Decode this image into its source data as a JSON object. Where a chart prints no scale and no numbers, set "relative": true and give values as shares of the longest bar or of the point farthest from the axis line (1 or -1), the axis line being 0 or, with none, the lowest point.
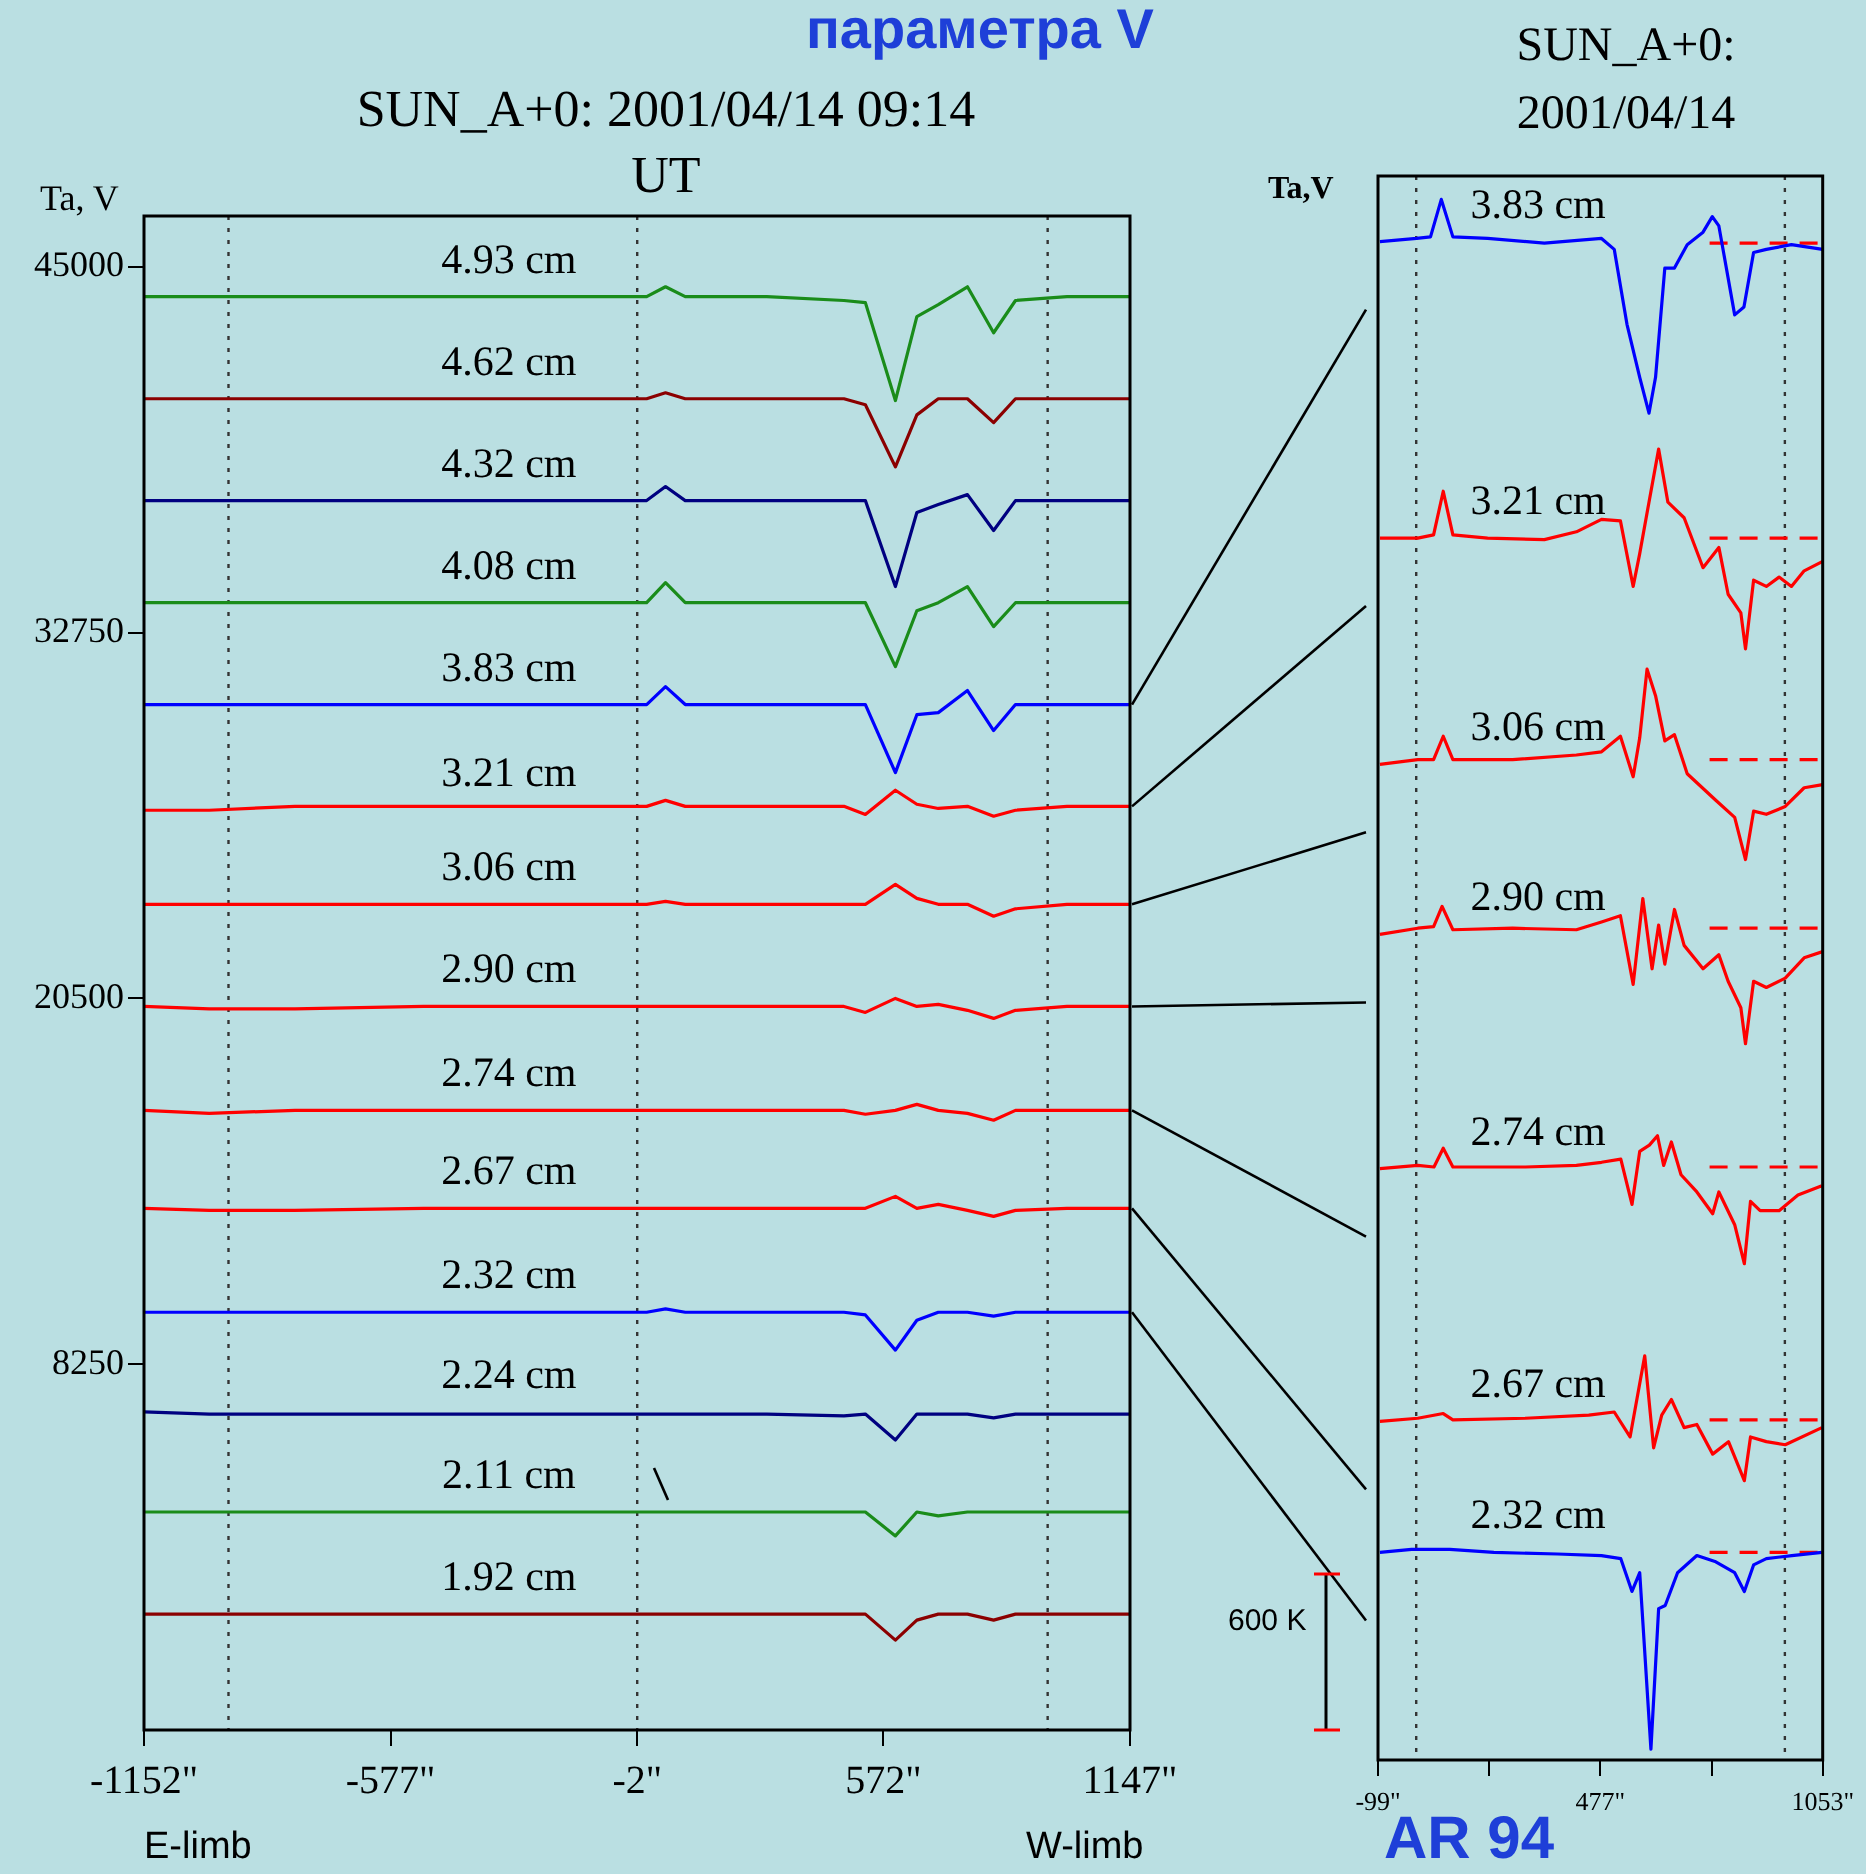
{
  "chart_data": [
    {
      "type": "line",
      "title": "SUN_A+0: 2001/04/14 09:14 UT",
      "ylabel": "Ta,  V",
      "annotations": [
        "параметра V",
        "E-limb",
        "W-limb"
      ],
      "x": [
        -1152,
        -1000,
        -800,
        -500,
        -100,
        20,
        64,
        110,
        300,
        480,
        530,
        600,
        650,
        700,
        768,
        829,
        880,
        1000,
        1147
      ],
      "xlim": [
        -1152,
        1147
      ],
      "xticks": [
        {
          "value": -1152,
          "label": "-1152\""
        },
        {
          "value": -577,
          "label": "-577\""
        },
        {
          "value": -2,
          "label": "-2\""
        },
        {
          "value": 572,
          "label": "572\""
        },
        {
          "value": 1147,
          "label": "1147\""
        }
      ],
      "ylim": [
        -4000,
        46700
      ],
      "yticks": [
        8250,
        20500,
        32750,
        45000
      ],
      "ref_lines": [
        {
          "axis": "x",
          "value": -955,
          "line_style": "dotted",
          "color": "#333333"
        },
        {
          "axis": "x",
          "value": -2,
          "line_style": "dotted",
          "color": "#333333"
        },
        {
          "axis": "x",
          "value": 955,
          "line_style": "dotted",
          "color": "#333333"
        }
      ],
      "series": [
        {
          "name": "4.93 cm",
          "color": "#1a8c1a",
          "values": [
            44000,
            44000,
            44000,
            44000,
            44000,
            44000,
            44330,
            44000,
            44000,
            43870,
            43800,
            40520,
            43330,
            43730,
            44330,
            42790,
            43870,
            44000,
            44000
          ]
        },
        {
          "name": "4.62 cm",
          "color": "#8b0000",
          "values": [
            40580,
            40580,
            40580,
            40580,
            40580,
            40580,
            40780,
            40580,
            40580,
            40580,
            40380,
            38300,
            40040,
            40580,
            40580,
            39780,
            40580,
            40580,
            40580
          ]
        },
        {
          "name": "4.32 cm",
          "color": "#000080",
          "values": [
            37170,
            37170,
            37170,
            37170,
            37170,
            37170,
            37640,
            37170,
            37170,
            37170,
            37170,
            34290,
            36770,
            37040,
            37370,
            36170,
            37170,
            37170,
            37170
          ]
        },
        {
          "name": "4.08 cm",
          "color": "#1a8c1a",
          "values": [
            33750,
            33750,
            33750,
            33750,
            33750,
            33750,
            34420,
            33750,
            33750,
            33750,
            33750,
            31610,
            33480,
            33750,
            34290,
            32950,
            33750,
            33750,
            33750
          ]
        },
        {
          "name": "3.83 cm",
          "color": "#0000ff",
          "values": [
            30340,
            30340,
            30340,
            30340,
            30340,
            30340,
            30940,
            30340,
            30340,
            30340,
            30340,
            28060,
            30000,
            30070,
            30810,
            29470,
            30340,
            30340,
            30340
          ]
        },
        {
          "name": "3.21 cm",
          "color": "#ff0000",
          "values": [
            26800,
            26800,
            26930,
            26930,
            26930,
            26930,
            27130,
            26930,
            26930,
            26930,
            26660,
            27470,
            27000,
            26860,
            26930,
            26600,
            26800,
            26930,
            26930
          ]
        },
        {
          "name": "3.06 cm",
          "color": "#ff0000",
          "values": [
            23650,
            23650,
            23650,
            23650,
            23650,
            23650,
            23750,
            23650,
            23650,
            23650,
            23650,
            24320,
            23850,
            23650,
            23650,
            23250,
            23500,
            23650,
            23650
          ]
        },
        {
          "name": "2.90 cm",
          "color": "#ff0000",
          "values": [
            20230,
            20150,
            20150,
            20230,
            20230,
            20230,
            20230,
            20230,
            20230,
            20230,
            20030,
            20500,
            20230,
            20300,
            20100,
            19830,
            20100,
            20230,
            20230
          ]
        },
        {
          "name": "2.74 cm",
          "color": "#ff0000",
          "values": [
            16750,
            16650,
            16750,
            16750,
            16750,
            16750,
            16750,
            16750,
            16750,
            16750,
            16620,
            16750,
            16950,
            16750,
            16650,
            16420,
            16750,
            16750,
            16750
          ]
        },
        {
          "name": "2.67 cm",
          "color": "#ff0000",
          "values": [
            13470,
            13400,
            13400,
            13470,
            13470,
            13470,
            13470,
            13470,
            13470,
            13470,
            13470,
            13870,
            13470,
            13600,
            13400,
            13200,
            13400,
            13470,
            13470
          ]
        },
        {
          "name": "2.32 cm",
          "color": "#0000ff",
          "values": [
            9990,
            9990,
            9990,
            9990,
            9990,
            9990,
            10100,
            9990,
            9990,
            9990,
            9900,
            8720,
            9720,
            9990,
            9990,
            9860,
            9990,
            9990,
            9990
          ]
        },
        {
          "name": "2.24 cm",
          "color": "#000080",
          "values": [
            6650,
            6580,
            6580,
            6580,
            6580,
            6580,
            6580,
            6580,
            6580,
            6520,
            6580,
            5710,
            6580,
            6580,
            6580,
            6450,
            6580,
            6580,
            6580
          ]
        },
        {
          "name": "2.11 cm",
          "color": "#1a8c1a",
          "values": [
            3300,
            3300,
            3300,
            3300,
            3300,
            3300,
            3300,
            3300,
            3300,
            3300,
            3300,
            2500,
            3300,
            3170,
            3300,
            3300,
            3300,
            3300,
            3300
          ]
        },
        {
          "name": "1.92 cm",
          "color": "#8b0000",
          "values": [
            -120,
            -120,
            -120,
            -120,
            -120,
            -120,
            -120,
            -120,
            -120,
            -120,
            -120,
            -990,
            -320,
            -120,
            -120,
            -320,
            -120,
            -120,
            -120
          ]
        }
      ]
    },
    {
      "type": "line",
      "title": "SUN_A+0: 2001/04/14",
      "ylabel": "Ta,V",
      "relative": true,
      "annotations": [
        "600 K",
        "AR 94"
      ],
      "xlim": [
        -99,
        1053
      ],
      "xticks": [
        {
          "value": -99,
          "label": "-99\""
        },
        {
          "value": 189,
          "label": null
        },
        {
          "value": 477,
          "label": "477\""
        },
        {
          "value": 765,
          "label": null
        },
        {
          "value": 1053,
          "label": "1053\""
        }
      ],
      "ref_lines": [
        {
          "axis": "x",
          "value": 0,
          "line_style": "dotted",
          "color": "#333333"
        },
        {
          "axis": "x",
          "value": 955,
          "line_style": "dotted",
          "color": "#333333"
        }
      ],
      "series": [
        {
          "name": "3.83 cm",
          "color": "#0000ff",
          "x": [
            -94,
            1,
            37,
            65,
            95,
            185,
            332,
            480,
            513,
            546,
            579,
            603,
            620,
            644,
            669,
            702,
            743,
            767,
            784,
            825,
            849,
            874,
            907,
            972,
            1053
          ],
          "values": [
            0.973,
            0.975,
            0.976,
            1,
            0.976,
            0.975,
            0.972,
            0.975,
            0.968,
            0.92,
            0.886,
            0.863,
            0.886,
            0.956,
            0.956,
            0.971,
            0.979,
            0.989,
            0.983,
            0.926,
            0.931,
            0.966,
            0.968,
            0.971,
            0.968
          ]
        },
        {
          "name": "3.21 cm",
          "color": "#ff0000",
          "x": [
            -94,
            4,
            45,
            70,
            95,
            185,
            332,
            415,
            480,
            529,
            562,
            579,
            603,
            628,
            652,
            694,
            743,
            784,
            808,
            841,
            853,
            874,
            907,
            940,
            972,
            1005,
            1053
          ],
          "values": [
            0.783,
            0.783,
            0.785,
            0.813,
            0.785,
            0.783,
            0.782,
            0.787,
            0.795,
            0.794,
            0.752,
            0.773,
            0.806,
            0.84,
            0.806,
            0.796,
            0.764,
            0.777,
            0.747,
            0.735,
            0.712,
            0.756,
            0.752,
            0.758,
            0.752,
            0.762,
            0.768
          ]
        },
        {
          "name": "3.06 cm",
          "color": "#ff0000",
          "x": [
            -94,
            4,
            45,
            70,
            95,
            250,
            415,
            480,
            529,
            562,
            579,
            598,
            620,
            644,
            669,
            702,
            776,
            825,
            853,
            874,
            907,
            956,
            1005,
            1053
          ],
          "values": [
            0.638,
            0.641,
            0.641,
            0.656,
            0.641,
            0.641,
            0.644,
            0.646,
            0.656,
            0.63,
            0.655,
            0.699,
            0.682,
            0.653,
            0.657,
            0.632,
            0.615,
            0.604,
            0.577,
            0.608,
            0.606,
            0.611,
            0.623,
            0.625
          ]
        },
        {
          "name": "2.90 cm",
          "color": "#ff0000",
          "x": [
            -94,
            4,
            45,
            67,
            95,
            250,
            415,
            480,
            529,
            562,
            587,
            611,
            628,
            644,
            669,
            694,
            743,
            784,
            808,
            841,
            853,
            874,
            907,
            956,
            1005,
            1053
          ],
          "values": [
            0.529,
            0.533,
            0.534,
            0.547,
            0.532,
            0.533,
            0.532,
            0.537,
            0.541,
            0.497,
            0.552,
            0.507,
            0.535,
            0.51,
            0.545,
            0.522,
            0.507,
            0.516,
            0.499,
            0.482,
            0.459,
            0.499,
            0.495,
            0.501,
            0.514,
            0.518
          ]
        },
        {
          "name": "2.74 cm",
          "color": "#ff0000",
          "x": [
            -94,
            4,
            46,
            70,
            95,
            283,
            415,
            480,
            530,
            559,
            579,
            604,
            625,
            641,
            661,
            686,
            727,
            768,
            784,
            825,
            850,
            866,
            891,
            940,
            989,
            1051
          ],
          "values": [
            0.379,
            0.381,
            0.38,
            0.392,
            0.38,
            0.38,
            0.381,
            0.383,
            0.385,
            0.356,
            0.39,
            0.394,
            0.4,
            0.381,
            0.396,
            0.375,
            0.364,
            0.35,
            0.364,
            0.343,
            0.318,
            0.358,
            0.352,
            0.352,
            0.362,
            0.368
          ]
        },
        {
          "name": "2.67 cm",
          "color": "#ff0000",
          "x": [
            -94,
            4,
            70,
            95,
            283,
            447,
            513,
            554,
            592,
            615,
            636,
            661,
            694,
            727,
            768,
            809,
            850,
            866,
            907,
            956,
            1051
          ],
          "values": [
            0.217,
            0.219,
            0.222,
            0.218,
            0.219,
            0.221,
            0.223,
            0.207,
            0.259,
            0.2,
            0.221,
            0.231,
            0.213,
            0.215,
            0.196,
            0.204,
            0.179,
            0.207,
            0.204,
            0.202,
            0.213
          ]
        },
        {
          "name": "2.32 cm",
          "color": "#0000ff",
          "x": [
            -94,
            -12,
            87,
            201,
            366,
            480,
            530,
            559,
            579,
            608,
            628,
            645,
            677,
            727,
            776,
            825,
            850,
            874,
            907,
            973,
            1051
          ],
          "values": [
            0.133,
            0.135,
            0.135,
            0.133,
            0.132,
            0.131,
            0.129,
            0.108,
            0.12,
            0.007,
            0.097,
            0.099,
            0.12,
            0.131,
            0.127,
            0.12,
            0.108,
            0.125,
            0.129,
            0.131,
            0.133
          ]
        },
        {
          "color": "#ff0000",
          "line_style": "dashed",
          "x": [
            760,
            1053
          ],
          "values": [
            0.972,
            0.972
          ]
        },
        {
          "color": "#ff0000",
          "line_style": "dashed",
          "x": [
            760,
            1053
          ],
          "values": [
            0.783,
            0.783
          ]
        },
        {
          "color": "#ff0000",
          "line_style": "dashed",
          "x": [
            760,
            1053
          ],
          "values": [
            0.641,
            0.641
          ]
        },
        {
          "color": "#ff0000",
          "line_style": "dashed",
          "x": [
            760,
            1053
          ],
          "values": [
            0.533,
            0.533
          ]
        },
        {
          "color": "#ff0000",
          "line_style": "dashed",
          "x": [
            760,
            1053
          ],
          "values": [
            0.38,
            0.38
          ]
        },
        {
          "color": "#ff0000",
          "line_style": "dashed",
          "x": [
            760,
            1053
          ],
          "values": [
            0.218,
            0.218
          ]
        },
        {
          "color": "#ff0000",
          "line_style": "dashed",
          "x": [
            760,
            1053
          ],
          "values": [
            0.133,
            0.133
          ]
        }
      ]
    }
  ]
}
